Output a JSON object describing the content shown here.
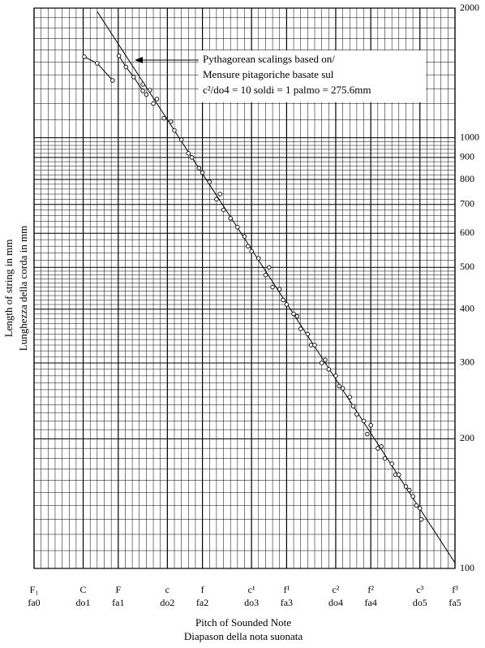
{
  "chart_data": {
    "type": "scatter",
    "y_label": "Length of string in mm",
    "y_label_2": "Lunghezza della corda in mm",
    "x_label": "Pitch of Sounded Note",
    "x_label_2": "Diapason della nota suonata",
    "annotation": [
      "Pythagorean scalings based on/",
      "Mensure pitagoriche basate sul",
      "c²/do4  = 10 soldi = 1 palmo = 275.6mm"
    ],
    "xlim": [
      0,
      60
    ],
    "xticks": [
      {
        "value": 0,
        "label": "F₁",
        "label_2": "fa0"
      },
      {
        "value": 7,
        "label": "C",
        "label_2": "do1"
      },
      {
        "value": 12,
        "label": "F",
        "label_2": "fa1"
      },
      {
        "value": 19,
        "label": "c",
        "label_2": "do2"
      },
      {
        "value": 24,
        "label": "f",
        "label_2": "fa2"
      },
      {
        "value": 31,
        "label": "c¹",
        "label_2": "do3"
      },
      {
        "value": 36,
        "label": "f¹",
        "label_2": "fa3"
      },
      {
        "value": 43,
        "label": "c²",
        "label_2": "do4"
      },
      {
        "value": 48,
        "label": "f²",
        "label_2": "fa4"
      },
      {
        "value": 55,
        "label": "c³",
        "label_2": "do5"
      },
      {
        "value": 60,
        "label": "f³",
        "label_2": "fa5"
      }
    ],
    "ylim": [
      100,
      2000
    ],
    "log_y": true,
    "yticks": [
      100,
      200,
      300,
      400,
      500,
      600,
      700,
      800,
      900,
      1000,
      2000
    ],
    "grid": true,
    "series": [
      {
        "color": "#000",
        "line": true,
        "markers": false,
        "x": [
          9,
          60
        ],
        "values": [
          1964,
          103
        ]
      },
      {
        "color": "#000",
        "line": true,
        "markers": true,
        "x": [
          7.17,
          9.0,
          11.2
        ],
        "values": [
          1542,
          1489,
          1359
        ]
      },
      {
        "color": "#000",
        "line": true,
        "markers": true,
        "x": [
          12.1,
          13.1,
          14.2,
          15.5
        ],
        "values": [
          1550,
          1460,
          1384,
          1285
        ]
      },
      {
        "color": "#000",
        "line": false,
        "markers": true,
        "x": [
          15.5,
          16,
          16.5,
          17,
          17.5,
          18.5,
          19.5,
          20,
          21,
          22,
          22.5,
          23.5,
          24,
          25,
          26,
          26.5,
          27,
          28,
          29,
          30,
          30.5,
          31,
          32,
          33,
          33.5,
          34,
          35,
          35.5,
          36,
          37,
          37.5,
          38,
          39,
          39.5,
          40,
          41,
          41.5,
          42,
          43,
          43.5,
          44,
          45,
          45.5,
          46,
          47,
          47.5,
          48,
          49,
          49.5,
          50,
          51,
          51.5,
          52,
          53,
          53.5,
          54,
          54.5,
          55,
          55.2
        ],
        "values": [
          1330,
          1260,
          1290,
          1200,
          1230,
          1110,
          1090,
          1040,
          990,
          920,
          900,
          850,
          830,
          790,
          720,
          740,
          680,
          650,
          620,
          590,
          560,
          545,
          525,
          480,
          500,
          450,
          445,
          420,
          410,
          390,
          385,
          360,
          350,
          330,
          330,
          300,
          305,
          290,
          280,
          265,
          262,
          250,
          238,
          228,
          220,
          205,
          215,
          190,
          192,
          180,
          175,
          165,
          165,
          155,
          152,
          147,
          140,
          138,
          130
        ]
      }
    ]
  }
}
